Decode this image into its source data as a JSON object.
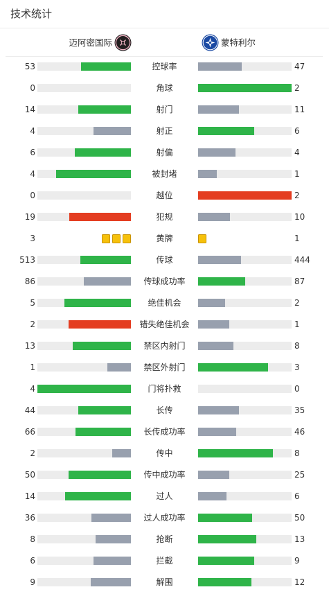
{
  "header": {
    "title": "技术统计"
  },
  "teams": {
    "home": {
      "name": "迈阿密国际",
      "crest_icon": "inter-miami-crest-icon"
    },
    "away": {
      "name": "蒙特利尔",
      "crest_icon": "cf-montreal-crest-icon"
    }
  },
  "colors": {
    "better": "#2fb449",
    "worse": "#98a0ae",
    "alert": "#e43d21",
    "track": "#ececec",
    "card": "#f6c10b"
  },
  "stats": [
    {
      "label": "控球率",
      "home": "53",
      "away": "47",
      "home_fill": 0.53,
      "away_fill": 0.47,
      "home_color": "better",
      "away_color": "worse"
    },
    {
      "label": "角球",
      "home": "0",
      "away": "2",
      "home_fill": 0,
      "away_fill": 1,
      "home_color": "worse",
      "away_color": "better"
    },
    {
      "label": "射门",
      "home": "14",
      "away": "11",
      "home_fill": 0.56,
      "away_fill": 0.44,
      "home_color": "better",
      "away_color": "worse"
    },
    {
      "label": "射正",
      "home": "4",
      "away": "6",
      "home_fill": 0.4,
      "away_fill": 0.6,
      "home_color": "worse",
      "away_color": "better"
    },
    {
      "label": "射偏",
      "home": "6",
      "away": "4",
      "home_fill": 0.6,
      "away_fill": 0.4,
      "home_color": "better",
      "away_color": "worse"
    },
    {
      "label": "被封堵",
      "home": "4",
      "away": "1",
      "home_fill": 0.8,
      "away_fill": 0.2,
      "home_color": "better",
      "away_color": "worse"
    },
    {
      "label": "越位",
      "home": "0",
      "away": "2",
      "home_fill": 0,
      "away_fill": 1,
      "home_color": "worse",
      "away_color": "alert"
    },
    {
      "label": "犯规",
      "home": "19",
      "away": "10",
      "home_fill": 0.66,
      "away_fill": 0.34,
      "home_color": "alert",
      "away_color": "worse"
    },
    {
      "label": "黄牌",
      "home": "3",
      "away": "1",
      "type": "cards"
    },
    {
      "label": "传球",
      "home": "513",
      "away": "444",
      "home_fill": 0.54,
      "away_fill": 0.46,
      "home_color": "better",
      "away_color": "worse"
    },
    {
      "label": "传球成功率",
      "home": "86",
      "away": "87",
      "home_fill": 0.5,
      "away_fill": 0.5,
      "home_color": "worse",
      "away_color": "better"
    },
    {
      "label": "绝佳机会",
      "home": "5",
      "away": "2",
      "home_fill": 0.71,
      "away_fill": 0.29,
      "home_color": "better",
      "away_color": "worse"
    },
    {
      "label": "错失绝佳机会",
      "home": "2",
      "away": "1",
      "home_fill": 0.67,
      "away_fill": 0.33,
      "home_color": "alert",
      "away_color": "worse"
    },
    {
      "label": "禁区内射门",
      "home": "13",
      "away": "8",
      "home_fill": 0.62,
      "away_fill": 0.38,
      "home_color": "better",
      "away_color": "worse"
    },
    {
      "label": "禁区外射门",
      "home": "1",
      "away": "3",
      "home_fill": 0.25,
      "away_fill": 0.75,
      "home_color": "worse",
      "away_color": "better"
    },
    {
      "label": "门将扑救",
      "home": "4",
      "away": "0",
      "home_fill": 1,
      "away_fill": 0,
      "home_color": "better",
      "away_color": "worse"
    },
    {
      "label": "长传",
      "home": "44",
      "away": "35",
      "home_fill": 0.56,
      "away_fill": 0.44,
      "home_color": "better",
      "away_color": "worse"
    },
    {
      "label": "长传成功率",
      "home": "66",
      "away": "46",
      "home_fill": 0.59,
      "away_fill": 0.41,
      "home_color": "better",
      "away_color": "worse"
    },
    {
      "label": "传中",
      "home": "2",
      "away": "8",
      "home_fill": 0.2,
      "away_fill": 0.8,
      "home_color": "worse",
      "away_color": "better"
    },
    {
      "label": "传中成功率",
      "home": "50",
      "away": "25",
      "home_fill": 0.67,
      "away_fill": 0.33,
      "home_color": "better",
      "away_color": "worse"
    },
    {
      "label": "过人",
      "home": "14",
      "away": "6",
      "home_fill": 0.7,
      "away_fill": 0.3,
      "home_color": "better",
      "away_color": "worse"
    },
    {
      "label": "过人成功率",
      "home": "36",
      "away": "50",
      "home_fill": 0.42,
      "away_fill": 0.58,
      "home_color": "worse",
      "away_color": "better"
    },
    {
      "label": "抢断",
      "home": "8",
      "away": "13",
      "home_fill": 0.38,
      "away_fill": 0.62,
      "home_color": "worse",
      "away_color": "better"
    },
    {
      "label": "拦截",
      "home": "6",
      "away": "9",
      "home_fill": 0.4,
      "away_fill": 0.6,
      "home_color": "worse",
      "away_color": "better"
    },
    {
      "label": "解围",
      "home": "9",
      "away": "12",
      "home_fill": 0.43,
      "away_fill": 0.57,
      "home_color": "worse",
      "away_color": "better"
    }
  ]
}
